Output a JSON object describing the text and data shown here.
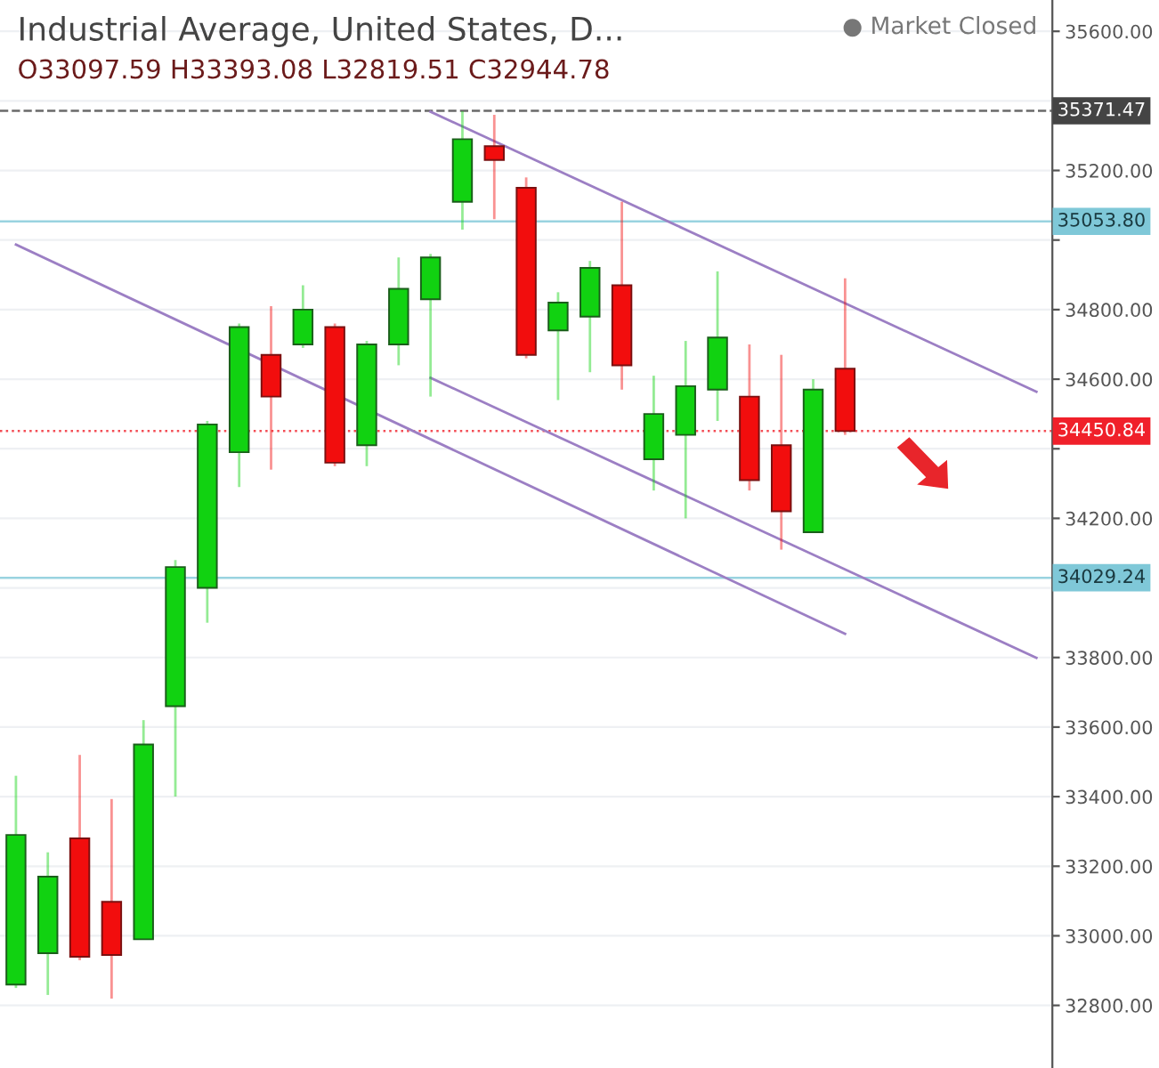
{
  "chart_data": {
    "type": "candlestick",
    "title": "Industrial Average, United States, D...",
    "subtitle": "O33097.59 H33393.08 L32819.51 C32944.78",
    "annotations": [
      "● Market Closed"
    ],
    "categories": [
      null,
      null,
      null,
      null,
      null,
      null,
      null,
      null,
      null,
      null,
      null,
      null,
      null,
      null,
      null,
      null,
      null,
      null,
      null,
      null,
      null,
      null,
      null,
      null,
      null,
      null,
      null,
      null,
      null,
      null,
      null,
      null,
      null
    ],
    "ohlc": [
      [
        32860,
        33460,
        32850,
        33290
      ],
      [
        32950,
        33240,
        32830,
        33170
      ],
      [
        33280,
        33520,
        32930,
        32940
      ],
      [
        33097.59,
        33393.08,
        32819.51,
        32944.78
      ],
      [
        32990,
        33620,
        32990,
        33550
      ],
      [
        33660,
        34080,
        33400,
        34060
      ],
      [
        34000,
        34480,
        33900,
        34470
      ],
      [
        34390,
        34760,
        34290,
        34750
      ],
      [
        34670,
        34810,
        34340,
        34550
      ],
      [
        34700,
        34870,
        34690,
        34800
      ],
      [
        34750,
        34760,
        34350,
        34360
      ],
      [
        34410,
        34710,
        34350,
        34700
      ],
      [
        34700,
        34950,
        34640,
        34860
      ],
      [
        34830,
        34960,
        34550,
        34950
      ],
      [
        35110,
        35370,
        35030,
        35290
      ],
      [
        35270,
        35360,
        35060,
        35230
      ],
      [
        35150,
        35180,
        34660,
        34670
      ],
      [
        34740,
        34850,
        34540,
        34820
      ],
      [
        34780,
        34940,
        34620,
        34920
      ],
      [
        34870,
        35110,
        34570,
        34640
      ],
      [
        34370,
        34610,
        34280,
        34500
      ],
      [
        34440,
        34710,
        34200,
        34580
      ],
      [
        34570,
        34910,
        34480,
        34720
      ],
      [
        34550,
        34700,
        34280,
        34310
      ],
      [
        34410,
        34670,
        34110,
        34220
      ],
      [
        34160,
        34600,
        34160,
        34570
      ],
      [
        34630,
        34890,
        34440,
        34450.84
      ],
      null,
      null,
      null,
      null,
      null,
      null
    ],
    "colors": [
      "#11d211",
      "#11d211",
      "#f20d0d",
      "#f20d0d",
      "#11d211",
      "#11d211",
      "#11d211",
      "#11d211",
      "#f20d0d",
      "#11d211",
      "#f20d0d",
      "#11d211",
      "#11d211",
      "#11d211",
      "#11d211",
      "#f20d0d",
      "#f20d0d",
      "#11d211",
      "#11d211",
      "#f20d0d",
      "#11d211",
      "#11d211",
      "#11d211",
      "#f20d0d",
      "#f20d0d",
      "#11d211",
      "#f20d0d",
      null,
      null,
      null,
      null,
      null,
      null
    ],
    "series": [
      {
        "type": "line",
        "color": "#9c7fc4",
        "values": [
          null,
          null,
          null,
          null,
          null,
          null,
          null,
          null,
          null,
          null,
          null,
          null,
          null,
          35369,
          null,
          null,
          null,
          null,
          null,
          null,
          null,
          null,
          null,
          null,
          null,
          null,
          null,
          null,
          null,
          null,
          null,
          null,
          34564
        ]
      },
      {
        "type": "line",
        "color": "#9c7fc4",
        "values": [
          null,
          null,
          null,
          null,
          null,
          null,
          null,
          null,
          null,
          null,
          null,
          null,
          null,
          34604,
          null,
          null,
          null,
          null,
          null,
          null,
          null,
          null,
          null,
          null,
          null,
          null,
          null,
          null,
          null,
          null,
          null,
          null,
          33799
        ]
      },
      {
        "type": "line",
        "color": "#9c7fc4",
        "values": [
          34987,
          null,
          null,
          null,
          null,
          null,
          null,
          null,
          null,
          null,
          null,
          null,
          null,
          null,
          null,
          null,
          null,
          null,
          null,
          null,
          null,
          null,
          null,
          null,
          null,
          null,
          33868,
          null,
          null,
          null,
          null,
          null,
          null
        ]
      }
    ],
    "ref_lines": [
      {
        "axis": "y",
        "value": 35371.47,
        "label": "35371.47",
        "color": "#444444",
        "line_style": "dashed"
      },
      {
        "axis": "y",
        "value": 35053.8,
        "label": "35053.80",
        "color": "#7fc8d8",
        "line_style": "solid"
      },
      {
        "axis": "y",
        "value": 34450.84,
        "label": "34450.84",
        "color": "#f0202a",
        "line_style": "dotted"
      },
      {
        "axis": "y",
        "value": 34029.24,
        "label": "34029.24",
        "color": "#7fc8d8",
        "line_style": "solid"
      }
    ],
    "ylim": [
      32620,
      35690
    ],
    "yticks": [
      {
        "value": 32800,
        "label": "32800.00"
      },
      {
        "value": 33000,
        "label": "33000.00"
      },
      {
        "value": 33200,
        "label": "33200.00"
      },
      {
        "value": 33400,
        "label": "33400.00"
      },
      {
        "value": 33600,
        "label": "33600.00"
      },
      {
        "value": 33800,
        "label": "33800.00"
      },
      {
        "value": 34000,
        "label": null
      },
      {
        "value": 34200,
        "label": "34200.00"
      },
      {
        "value": 34400,
        "label": null
      },
      {
        "value": 34600,
        "label": "34600.00"
      },
      {
        "value": 34800,
        "label": "34800.00"
      },
      {
        "value": 35000,
        "label": null
      },
      {
        "value": 35200,
        "label": "35200.00"
      },
      {
        "value": 35400,
        "label": null
      },
      {
        "value": 35600,
        "label": "35600.00"
      }
    ],
    "tick_labels": "y",
    "grid": "y"
  }
}
